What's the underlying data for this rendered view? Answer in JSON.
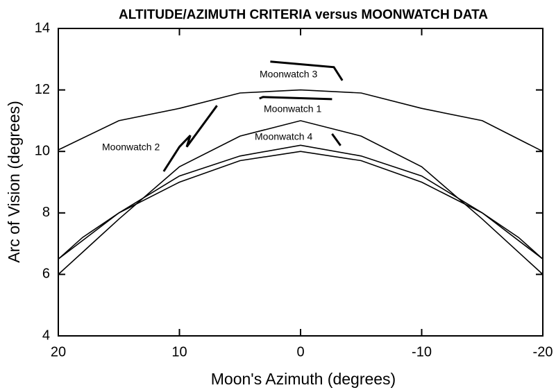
{
  "chart_data": {
    "type": "line",
    "title": "ALTITUDE/AZIMUTH CRITERIA versus MOONWATCH DATA",
    "x_label": "Moon's Azimuth (degrees)",
    "y_label": "Arc of Vision (degrees)",
    "xlim": [
      20,
      -20
    ],
    "xticks": [
      20,
      10,
      0,
      -10,
      -20
    ],
    "ylim": [
      4,
      14
    ],
    "yticks": [
      4,
      6,
      8,
      10,
      12,
      14
    ],
    "color": "#000000",
    "series": [
      {
        "x": [
          20,
          15,
          10,
          5,
          0,
          -5,
          -10,
          -15,
          -20
        ],
        "values": [
          10.05,
          11.0,
          11.4,
          11.9,
          12.0,
          11.9,
          11.4,
          11.0,
          10.0
        ]
      },
      {
        "x": [
          20,
          15,
          10,
          5,
          0,
          -5,
          -10,
          -15,
          -20
        ],
        "values": [
          6.0,
          7.8,
          9.5,
          10.5,
          11.0,
          10.5,
          9.5,
          7.8,
          6.0
        ]
      },
      {
        "x": [
          20,
          18,
          15,
          10,
          5,
          0,
          -5,
          -10,
          -15,
          -18,
          -20
        ],
        "values": [
          6.5,
          7.2,
          8.0,
          9.2,
          9.85,
          10.2,
          9.85,
          9.2,
          8.0,
          7.2,
          6.5
        ]
      },
      {
        "x": [
          20,
          15,
          10,
          5,
          0,
          -5,
          -10,
          -15,
          -20
        ],
        "values": [
          6.5,
          8.0,
          9.0,
          9.7,
          10.0,
          9.7,
          9.0,
          8.0,
          6.5
        ]
      },
      {
        "name": "Moonwatch 3",
        "x": [
          2.5,
          -2.75,
          -3.45
        ],
        "values": [
          12.92,
          12.74,
          12.31
        ]
      },
      {
        "name": "Moonwatch 1",
        "x": [
          3.4,
          3.1,
          -2.6
        ],
        "values": [
          11.72,
          11.77,
          11.7
        ]
      },
      {
        "name": "Moonwatch 2",
        "x": [
          11.3,
          10.0,
          9.1,
          9.4,
          6.9
        ],
        "values": [
          9.35,
          10.15,
          10.52,
          10.15,
          11.49
        ]
      },
      {
        "name": "Moonwatch 4",
        "x": [
          -2.6,
          -3.3
        ],
        "values": [
          10.57,
          10.19
        ]
      }
    ]
  }
}
